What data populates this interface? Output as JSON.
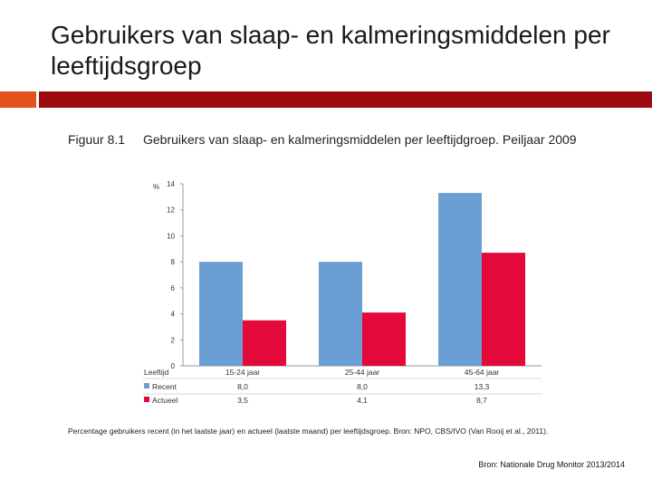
{
  "slide": {
    "title": "Gebruikers van slaap- en kalmeringsmiddelen per leeftijdsgroep",
    "source": "Bron: Nationale Drug Monitor 2013/2014"
  },
  "figure": {
    "label": "Figuur 8.1",
    "title": "Gebruikers van slaap- en kalmeringsmiddelen per leeftijdgroep. Peiljaar 2009",
    "caption": "Percentage gebruikers recent (in het laatste jaar) en actueel (laatste maand) per leeftijdsgroep. Bron: NPO, CBS/IVO (Van Rooij et al., 2011).",
    "table_header": "Leeftijd"
  },
  "colors": {
    "recent": "#6b9fd3",
    "actueel": "#e30a3b"
  },
  "chart_data": {
    "type": "bar",
    "title": "Gebruikers van slaap- en kalmeringsmiddelen per leeftijdgroep. Peiljaar 2009",
    "ylabel": "%",
    "xlabel": "Leeftijd",
    "ylim": [
      0,
      14
    ],
    "yticks": [
      "0",
      "2",
      "4",
      "6",
      "8",
      "10",
      "12",
      "14"
    ],
    "categories": [
      "15-24 jaar",
      "25-44 jaar",
      "45-64 jaar"
    ],
    "series": [
      {
        "name": "Recent",
        "values": [
          8.0,
          8.0,
          13.3
        ],
        "labels": [
          "8,0",
          "8,0",
          "13,3"
        ]
      },
      {
        "name": "Actueel",
        "values": [
          3.5,
          4.1,
          8.7
        ],
        "labels": [
          "3,5",
          "4,1",
          "8,7"
        ]
      }
    ],
    "grid": false,
    "legend": "bottom-left"
  }
}
